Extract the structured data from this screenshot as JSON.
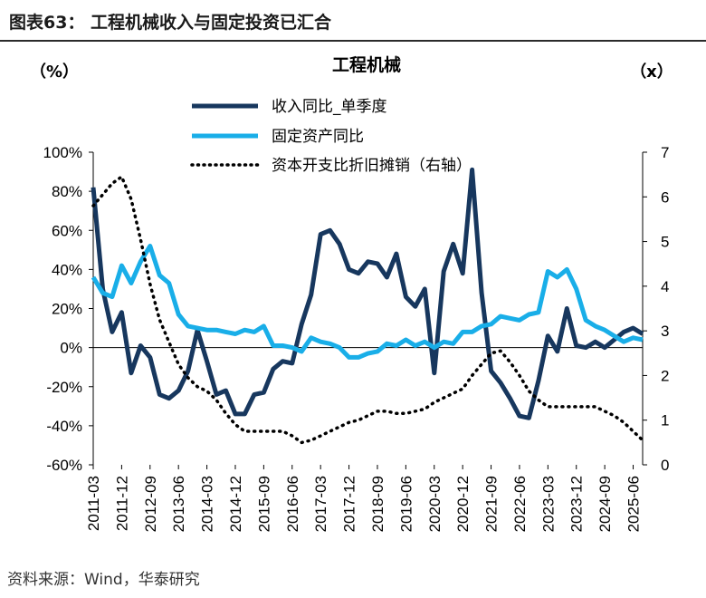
{
  "figure": {
    "title": "图表63：  工程机械收入与固定投资已汇合",
    "source": "资料来源：Wind，华泰研究"
  },
  "chart_data": {
    "type": "line",
    "title": "工程机械",
    "y_left_unit": "（%）",
    "y_right_unit": "（x）",
    "y_left_ticks": [
      "100%",
      "80%",
      "60%",
      "40%",
      "20%",
      "0%",
      "-20%",
      "-40%",
      "-60%"
    ],
    "y_right_ticks": [
      "7",
      "6",
      "5",
      "4",
      "3",
      "2",
      "1",
      "0"
    ],
    "ylim_left": [
      -60,
      100
    ],
    "ylim_right": [
      0,
      7
    ],
    "x_start": "2011-03",
    "x_tick_labels": [
      "2011-03",
      "2011-12",
      "2012-09",
      "2013-06",
      "2014-03",
      "2014-12",
      "2015-09",
      "2016-06",
      "2017-03",
      "2017-12",
      "2018-09",
      "2019-06",
      "2020-03",
      "2020-12",
      "2021-09",
      "2022-06",
      "2023-03",
      "2023-12",
      "2024-09",
      "2025-06"
    ],
    "legend_position": "top-center",
    "series": [
      {
        "name": "收入同比_单季度",
        "axis": "left",
        "color": "#17375e",
        "style": "solid-thick",
        "values": [
          82,
          30,
          8,
          18,
          -13,
          1,
          -5,
          -24,
          -26,
          -22,
          -12,
          9,
          -7,
          -24,
          -22,
          -34,
          -34,
          -24,
          -23,
          -11,
          -7,
          -8,
          12,
          27,
          58,
          60,
          53,
          40,
          38,
          44,
          43,
          36,
          48,
          26,
          21,
          30,
          -13,
          39,
          53,
          38,
          91,
          28,
          -12,
          -18,
          -26,
          -35,
          -36,
          -17,
          6,
          -2,
          20,
          1,
          0,
          3,
          0,
          4,
          8,
          10,
          7
        ]
      },
      {
        "name": "固定资产同比",
        "axis": "left",
        "color": "#19aee8",
        "style": "solid-thick",
        "values": [
          36,
          28,
          26,
          42,
          33,
          44,
          52,
          37,
          33,
          17,
          11,
          10,
          9,
          9,
          8,
          7,
          9,
          8,
          11,
          1,
          1,
          0,
          -2,
          5,
          3,
          2,
          0,
          -5,
          -5,
          -3,
          -2,
          2,
          1,
          4,
          1,
          3,
          0,
          3,
          2,
          8,
          8,
          11,
          12,
          16,
          15,
          14,
          17,
          18,
          39,
          36,
          40,
          30,
          14,
          11,
          9,
          6,
          3,
          5,
          4
        ]
      },
      {
        "name": "资本开支比折旧摊销（右轴）",
        "axis": "right",
        "color": "#000000",
        "style": "dotted",
        "values": [
          5.8,
          6.05,
          6.3,
          6.45,
          5.95,
          5.05,
          4.05,
          3.25,
          2.75,
          2.25,
          1.95,
          1.75,
          1.65,
          1.45,
          1.15,
          0.9,
          0.75,
          0.75,
          0.75,
          0.75,
          0.75,
          0.65,
          0.5,
          0.55,
          0.65,
          0.75,
          0.85,
          0.95,
          1.0,
          1.1,
          1.2,
          1.2,
          1.15,
          1.15,
          1.2,
          1.25,
          1.4,
          1.5,
          1.6,
          1.7,
          2.0,
          2.25,
          2.5,
          2.55,
          2.3,
          2.0,
          1.65,
          1.45,
          1.3,
          1.3,
          1.3,
          1.3,
          1.3,
          1.3,
          1.2,
          1.1,
          0.95,
          0.75,
          0.55
        ]
      }
    ]
  }
}
